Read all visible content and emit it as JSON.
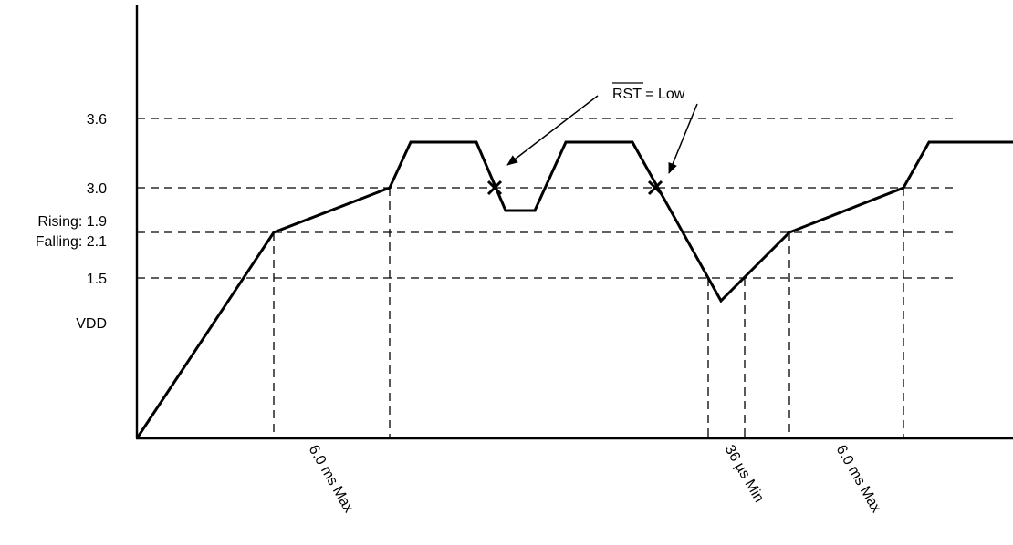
{
  "y_labels": {
    "v36": "3.6",
    "v30": "3.0",
    "rising": "Rising: 1.9",
    "falling": "Falling: 2.1",
    "v15": "1.5",
    "vdd": "VDD"
  },
  "annotation": {
    "rst_signal": "RST",
    "rst_suffix": " = Low"
  },
  "x_labels": {
    "t1": "6.0 ms Max",
    "t2": "36 µs Min",
    "t3": "6.0 ms Max"
  }
}
